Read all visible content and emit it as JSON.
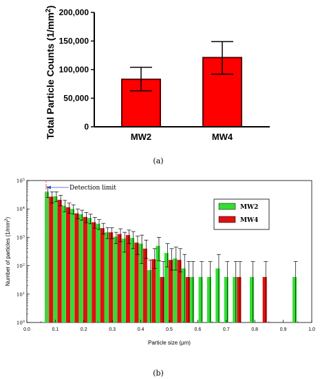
{
  "chart_data": [
    {
      "type": "bar",
      "panel_label": "(a)",
      "ylabel": "Total Particle Counts (1/mm",
      "ylabel_sup": "2",
      "ylabel_close": ")",
      "categories": [
        "MW2",
        "MW4"
      ],
      "values": [
        83000,
        121000
      ],
      "error_low": [
        63000,
        92000
      ],
      "error_high": [
        104000,
        149000
      ],
      "yticks": [
        "0",
        "50,000",
        "100,000",
        "150,000",
        "200,000"
      ],
      "ylim": [
        0,
        200000
      ],
      "colors": {
        "bar": "#ff0000",
        "edge": "#5a0000"
      }
    },
    {
      "type": "bar",
      "panel_label": "(b)",
      "xlabel": "Particle size (μm)",
      "ylabel": "Number of particles (1/mm",
      "ylabel_sup": "2",
      "ylabel_close": ")",
      "yscale": "log",
      "ylim_exp": [
        0,
        5
      ],
      "ytick_base": "10",
      "ytick_exps": [
        "0",
        "1",
        "2",
        "3",
        "4",
        "5"
      ],
      "xlim": [
        0.0,
        1.0
      ],
      "xticks": [
        "0.0",
        "0.1",
        "0.2",
        "0.3",
        "0.4",
        "0.5",
        "0.6",
        "0.7",
        "0.8",
        "0.9",
        "1.0"
      ],
      "annotation": "Detection limit",
      "detection_limit_x": 0.07,
      "legend_position": "top-right",
      "series": [
        {
          "name": "MW2",
          "color": "#33dd33",
          "x": [
            0.07,
            0.1,
            0.13,
            0.16,
            0.19,
            0.22,
            0.25,
            0.28,
            0.31,
            0.34,
            0.37,
            0.4,
            0.43,
            0.46,
            0.49,
            0.52,
            0.55,
            0.58,
            0.61,
            0.64,
            0.67,
            0.7,
            0.73,
            0.76,
            0.79,
            0.82,
            0.85,
            0.88,
            0.91,
            0.94
          ],
          "y": [
            40000,
            28000,
            13000,
            10000,
            6500,
            4800,
            3000,
            1500,
            1050,
            900,
            950,
            600,
            70,
            500,
            280,
            180,
            80,
            40,
            40,
            40,
            80,
            40,
            40,
            0,
            40,
            0,
            0,
            0,
            0,
            40
          ],
          "err_low": [
            25000,
            18000,
            8000,
            6500,
            4000,
            3000,
            1900,
            900,
            600,
            300,
            400,
            120,
            0,
            150,
            90,
            70,
            0,
            0,
            0,
            0,
            0,
            0,
            0,
            0,
            0,
            0,
            0,
            0,
            0,
            0
          ],
          "err_high": [
            60000,
            40000,
            20000,
            14000,
            9000,
            6500,
            4200,
            2200,
            1500,
            1500,
            1600,
            1200,
            160,
            1000,
            600,
            450,
            250,
            140,
            140,
            140,
            250,
            140,
            140,
            0,
            140,
            0,
            0,
            0,
            0,
            140
          ]
        },
        {
          "name": "MW4",
          "color": "#dd1111",
          "x": [
            0.085,
            0.115,
            0.145,
            0.175,
            0.205,
            0.235,
            0.265,
            0.295,
            0.325,
            0.355,
            0.385,
            0.415,
            0.445,
            0.475,
            0.505,
            0.535,
            0.565,
            0.595,
            0.625,
            0.655,
            0.685,
            0.715,
            0.745,
            0.775,
            0.805,
            0.835,
            0.865,
            0.895,
            0.925,
            0.955
          ],
          "y": [
            27000,
            21000,
            11500,
            7000,
            5200,
            3400,
            2100,
            1500,
            1300,
            1200,
            650,
            400,
            170,
            40,
            160,
            160,
            40,
            0,
            0,
            0,
            0,
            0,
            40,
            0,
            0,
            40,
            0,
            0,
            0,
            0
          ],
          "err_low": [
            16000,
            13000,
            7000,
            4500,
            3300,
            2100,
            1300,
            900,
            700,
            600,
            250,
            180,
            80,
            0,
            70,
            60,
            0,
            0,
            0,
            0,
            0,
            0,
            0,
            0,
            0,
            0,
            0,
            0,
            0,
            0
          ],
          "err_high": [
            40000,
            30000,
            16000,
            10000,
            7500,
            5000,
            3100,
            2200,
            2000,
            1800,
            1100,
            800,
            400,
            140,
            400,
            400,
            140,
            0,
            0,
            0,
            0,
            0,
            140,
            0,
            0,
            140,
            0,
            0,
            0,
            0
          ]
        }
      ]
    }
  ]
}
